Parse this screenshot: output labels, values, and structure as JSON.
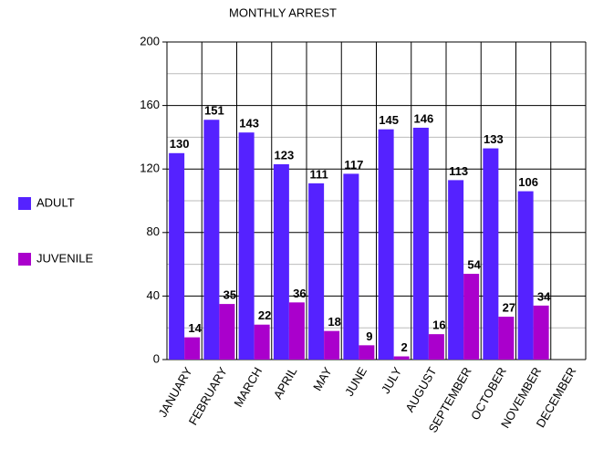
{
  "chart_data": {
    "type": "bar",
    "title": "MONTHLY ARREST",
    "categories": [
      "JANUARY",
      "FEBRUARY",
      "MARCH",
      "APRIL",
      "MAY",
      "JUNE",
      "JULY",
      "AUGUST",
      "SEPTEMBER",
      "OCTOBER",
      "NOVEMBER",
      "DECEMBER"
    ],
    "series": [
      {
        "name": "ADULT",
        "color": "#5522ff",
        "values": [
          130,
          151,
          143,
          123,
          111,
          117,
          145,
          146,
          113,
          133,
          106,
          null
        ]
      },
      {
        "name": "JUVENILE",
        "color": "#aa00cc",
        "values": [
          14,
          35,
          22,
          36,
          18,
          9,
          2,
          16,
          54,
          27,
          34,
          null
        ]
      }
    ],
    "ylim": [
      0,
      200
    ],
    "yticks": [
      0,
      40,
      80,
      120,
      160,
      200
    ],
    "yminorticks": [
      20,
      60,
      100,
      140,
      180
    ],
    "grid": true,
    "legend": "left"
  }
}
